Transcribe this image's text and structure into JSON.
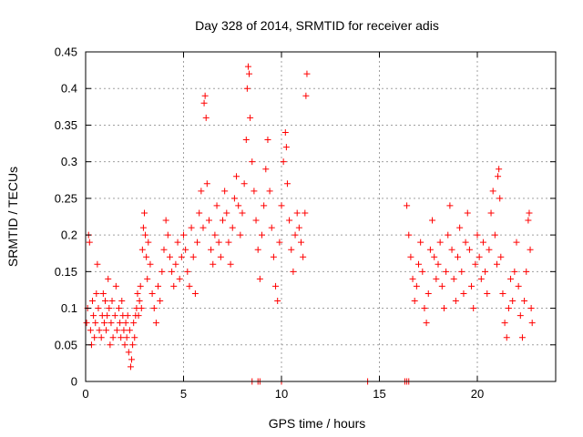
{
  "chart_data": {
    "type": "scatter",
    "title": "Day 328 of 2014, SRMTID for receiver adis",
    "xlabel": "GPS time / hours",
    "ylabel": "SRMTID / TECUs",
    "xlim": [
      0,
      24
    ],
    "ylim": [
      0,
      0.45
    ],
    "x_ticks": [
      0,
      5,
      10,
      15,
      20
    ],
    "y_ticks": [
      0,
      0.05,
      0.1,
      0.15,
      0.2,
      0.25,
      0.3,
      0.35,
      0.4,
      0.45
    ],
    "x_tick_labels": [
      "0",
      "5",
      "10",
      "15",
      "20"
    ],
    "y_tick_labels": [
      "0",
      "0.05",
      "0.1",
      "0.15",
      "0.2",
      "0.25",
      "0.3",
      "0.35",
      "0.4",
      "0.45"
    ],
    "grid": true,
    "marker": "+",
    "color": "#ff0000",
    "series": [
      {
        "name": "SRMTID",
        "points": [
          [
            0.05,
            0.08
          ],
          [
            0.1,
            0.1
          ],
          [
            0.15,
            0.2
          ],
          [
            0.2,
            0.19
          ],
          [
            0.25,
            0.07
          ],
          [
            0.3,
            0.05
          ],
          [
            0.35,
            0.11
          ],
          [
            0.4,
            0.09
          ],
          [
            0.45,
            0.06
          ],
          [
            0.5,
            0.08
          ],
          [
            0.55,
            0.12
          ],
          [
            0.6,
            0.16
          ],
          [
            0.65,
            0.1
          ],
          [
            0.7,
            0.07
          ],
          [
            0.8,
            0.06
          ],
          [
            0.85,
            0.09
          ],
          [
            0.9,
            0.12
          ],
          [
            0.95,
            0.08
          ],
          [
            1.0,
            0.11
          ],
          [
            1.05,
            0.07
          ],
          [
            1.1,
            0.09
          ],
          [
            1.15,
            0.14
          ],
          [
            1.2,
            0.1
          ],
          [
            1.25,
            0.05
          ],
          [
            1.3,
            0.08
          ],
          [
            1.35,
            0.11
          ],
          [
            1.4,
            0.06
          ],
          [
            1.5,
            0.09
          ],
          [
            1.55,
            0.13
          ],
          [
            1.6,
            0.07
          ],
          [
            1.7,
            0.1
          ],
          [
            1.75,
            0.08
          ],
          [
            1.8,
            0.06
          ],
          [
            1.85,
            0.11
          ],
          [
            1.9,
            0.09
          ],
          [
            1.95,
            0.07
          ],
          [
            2.0,
            0.05
          ],
          [
            2.05,
            0.08
          ],
          [
            2.1,
            0.06
          ],
          [
            2.15,
            0.09
          ],
          [
            2.2,
            0.04
          ],
          [
            2.25,
            0.07
          ],
          [
            2.3,
            0.02
          ],
          [
            2.35,
            0.03
          ],
          [
            2.4,
            0.05
          ],
          [
            2.45,
            0.08
          ],
          [
            2.5,
            0.06
          ],
          [
            2.55,
            0.09
          ],
          [
            2.6,
            0.1
          ],
          [
            2.65,
            0.12
          ],
          [
            2.7,
            0.09
          ],
          [
            2.75,
            0.11
          ],
          [
            2.8,
            0.13
          ],
          [
            2.85,
            0.1
          ],
          [
            2.9,
            0.18
          ],
          [
            2.95,
            0.21
          ],
          [
            3.0,
            0.23
          ],
          [
            3.05,
            0.2
          ],
          [
            3.1,
            0.17
          ],
          [
            3.15,
            0.14
          ],
          [
            3.2,
            0.19
          ],
          [
            3.3,
            0.16
          ],
          [
            3.4,
            0.12
          ],
          [
            3.5,
            0.1
          ],
          [
            3.6,
            0.08
          ],
          [
            3.7,
            0.13
          ],
          [
            3.8,
            0.11
          ],
          [
            3.9,
            0.15
          ],
          [
            4.0,
            0.18
          ],
          [
            4.1,
            0.22
          ],
          [
            4.2,
            0.2
          ],
          [
            4.3,
            0.17
          ],
          [
            4.4,
            0.15
          ],
          [
            4.5,
            0.13
          ],
          [
            4.6,
            0.16
          ],
          [
            4.7,
            0.19
          ],
          [
            4.8,
            0.14
          ],
          [
            4.9,
            0.17
          ],
          [
            5.0,
            0.2
          ],
          [
            5.1,
            0.18
          ],
          [
            5.2,
            0.15
          ],
          [
            5.3,
            0.13
          ],
          [
            5.4,
            0.21
          ],
          [
            5.5,
            0.17
          ],
          [
            5.6,
            0.12
          ],
          [
            5.7,
            0.19
          ],
          [
            5.8,
            0.23
          ],
          [
            5.9,
            0.26
          ],
          [
            6.0,
            0.21
          ],
          [
            6.05,
            0.38
          ],
          [
            6.1,
            0.39
          ],
          [
            6.15,
            0.36
          ],
          [
            6.2,
            0.27
          ],
          [
            6.3,
            0.22
          ],
          [
            6.4,
            0.18
          ],
          [
            6.5,
            0.16
          ],
          [
            6.6,
            0.2
          ],
          [
            6.7,
            0.24
          ],
          [
            6.8,
            0.19
          ],
          [
            6.9,
            0.17
          ],
          [
            7.0,
            0.22
          ],
          [
            7.1,
            0.26
          ],
          [
            7.2,
            0.23
          ],
          [
            7.3,
            0.19
          ],
          [
            7.4,
            0.16
          ],
          [
            7.5,
            0.21
          ],
          [
            7.6,
            0.25
          ],
          [
            7.7,
            0.28
          ],
          [
            7.8,
            0.24
          ],
          [
            7.9,
            0.2
          ],
          [
            8.0,
            0.23
          ],
          [
            8.1,
            0.27
          ],
          [
            8.2,
            0.33
          ],
          [
            8.25,
            0.4
          ],
          [
            8.3,
            0.43
          ],
          [
            8.35,
            0.42
          ],
          [
            8.4,
            0.36
          ],
          [
            8.5,
            0.3
          ],
          [
            8.6,
            0.26
          ],
          [
            8.7,
            0.22
          ],
          [
            8.8,
            0.18
          ],
          [
            8.9,
            0.14
          ],
          [
            9.0,
            0.2
          ],
          [
            9.1,
            0.24
          ],
          [
            9.2,
            0.29
          ],
          [
            9.3,
            0.33
          ],
          [
            9.4,
            0.26
          ],
          [
            9.5,
            0.21
          ],
          [
            9.6,
            0.17
          ],
          [
            9.7,
            0.13
          ],
          [
            9.8,
            0.11
          ],
          [
            9.9,
            0.19
          ],
          [
            10.0,
            0.24
          ],
          [
            10.1,
            0.3
          ],
          [
            10.2,
            0.34
          ],
          [
            10.25,
            0.32
          ],
          [
            10.3,
            0.27
          ],
          [
            10.4,
            0.22
          ],
          [
            10.5,
            0.18
          ],
          [
            10.6,
            0.15
          ],
          [
            10.7,
            0.2
          ],
          [
            10.8,
            0.23
          ],
          [
            10.9,
            0.21
          ],
          [
            11.0,
            0.19
          ],
          [
            11.1,
            0.17
          ],
          [
            11.2,
            0.23
          ],
          [
            11.25,
            0.39
          ],
          [
            11.3,
            0.42
          ],
          [
            8.5,
            0.0
          ],
          [
            8.8,
            0.0
          ],
          [
            8.9,
            0.0
          ],
          [
            10.0,
            0.0
          ],
          [
            14.4,
            0.0
          ],
          [
            16.3,
            0.0
          ],
          [
            16.4,
            0.0
          ],
          [
            16.5,
            0.0
          ],
          [
            16.4,
            0.24
          ],
          [
            16.5,
            0.2
          ],
          [
            16.6,
            0.17
          ],
          [
            16.7,
            0.14
          ],
          [
            16.8,
            0.11
          ],
          [
            16.9,
            0.13
          ],
          [
            17.0,
            0.16
          ],
          [
            17.1,
            0.19
          ],
          [
            17.2,
            0.15
          ],
          [
            17.3,
            0.1
          ],
          [
            17.4,
            0.08
          ],
          [
            17.5,
            0.12
          ],
          [
            17.6,
            0.18
          ],
          [
            17.7,
            0.22
          ],
          [
            17.8,
            0.17
          ],
          [
            17.9,
            0.14
          ],
          [
            18.0,
            0.16
          ],
          [
            18.1,
            0.19
          ],
          [
            18.2,
            0.13
          ],
          [
            18.3,
            0.1
          ],
          [
            18.4,
            0.15
          ],
          [
            18.5,
            0.2
          ],
          [
            18.6,
            0.24
          ],
          [
            18.7,
            0.18
          ],
          [
            18.8,
            0.14
          ],
          [
            18.9,
            0.11
          ],
          [
            19.0,
            0.17
          ],
          [
            19.1,
            0.21
          ],
          [
            19.2,
            0.15
          ],
          [
            19.3,
            0.12
          ],
          [
            19.4,
            0.19
          ],
          [
            19.5,
            0.23
          ],
          [
            19.6,
            0.18
          ],
          [
            19.7,
            0.13
          ],
          [
            19.8,
            0.1
          ],
          [
            19.9,
            0.16
          ],
          [
            20.0,
            0.2
          ],
          [
            20.1,
            0.17
          ],
          [
            20.2,
            0.14
          ],
          [
            20.3,
            0.19
          ],
          [
            20.4,
            0.15
          ],
          [
            20.5,
            0.12
          ],
          [
            20.6,
            0.18
          ],
          [
            20.7,
            0.23
          ],
          [
            20.8,
            0.26
          ],
          [
            20.9,
            0.2
          ],
          [
            21.0,
            0.16
          ],
          [
            21.05,
            0.28
          ],
          [
            21.1,
            0.29
          ],
          [
            21.15,
            0.25
          ],
          [
            21.2,
            0.17
          ],
          [
            21.3,
            0.12
          ],
          [
            21.4,
            0.08
          ],
          [
            21.5,
            0.06
          ],
          [
            21.6,
            0.1
          ],
          [
            21.7,
            0.14
          ],
          [
            21.8,
            0.11
          ],
          [
            21.9,
            0.15
          ],
          [
            22.0,
            0.19
          ],
          [
            22.1,
            0.13
          ],
          [
            22.2,
            0.09
          ],
          [
            22.3,
            0.06
          ],
          [
            22.4,
            0.11
          ],
          [
            22.5,
            0.15
          ],
          [
            22.6,
            0.22
          ],
          [
            22.65,
            0.23
          ],
          [
            22.7,
            0.18
          ],
          [
            22.75,
            0.1
          ],
          [
            22.8,
            0.08
          ]
        ]
      }
    ]
  }
}
